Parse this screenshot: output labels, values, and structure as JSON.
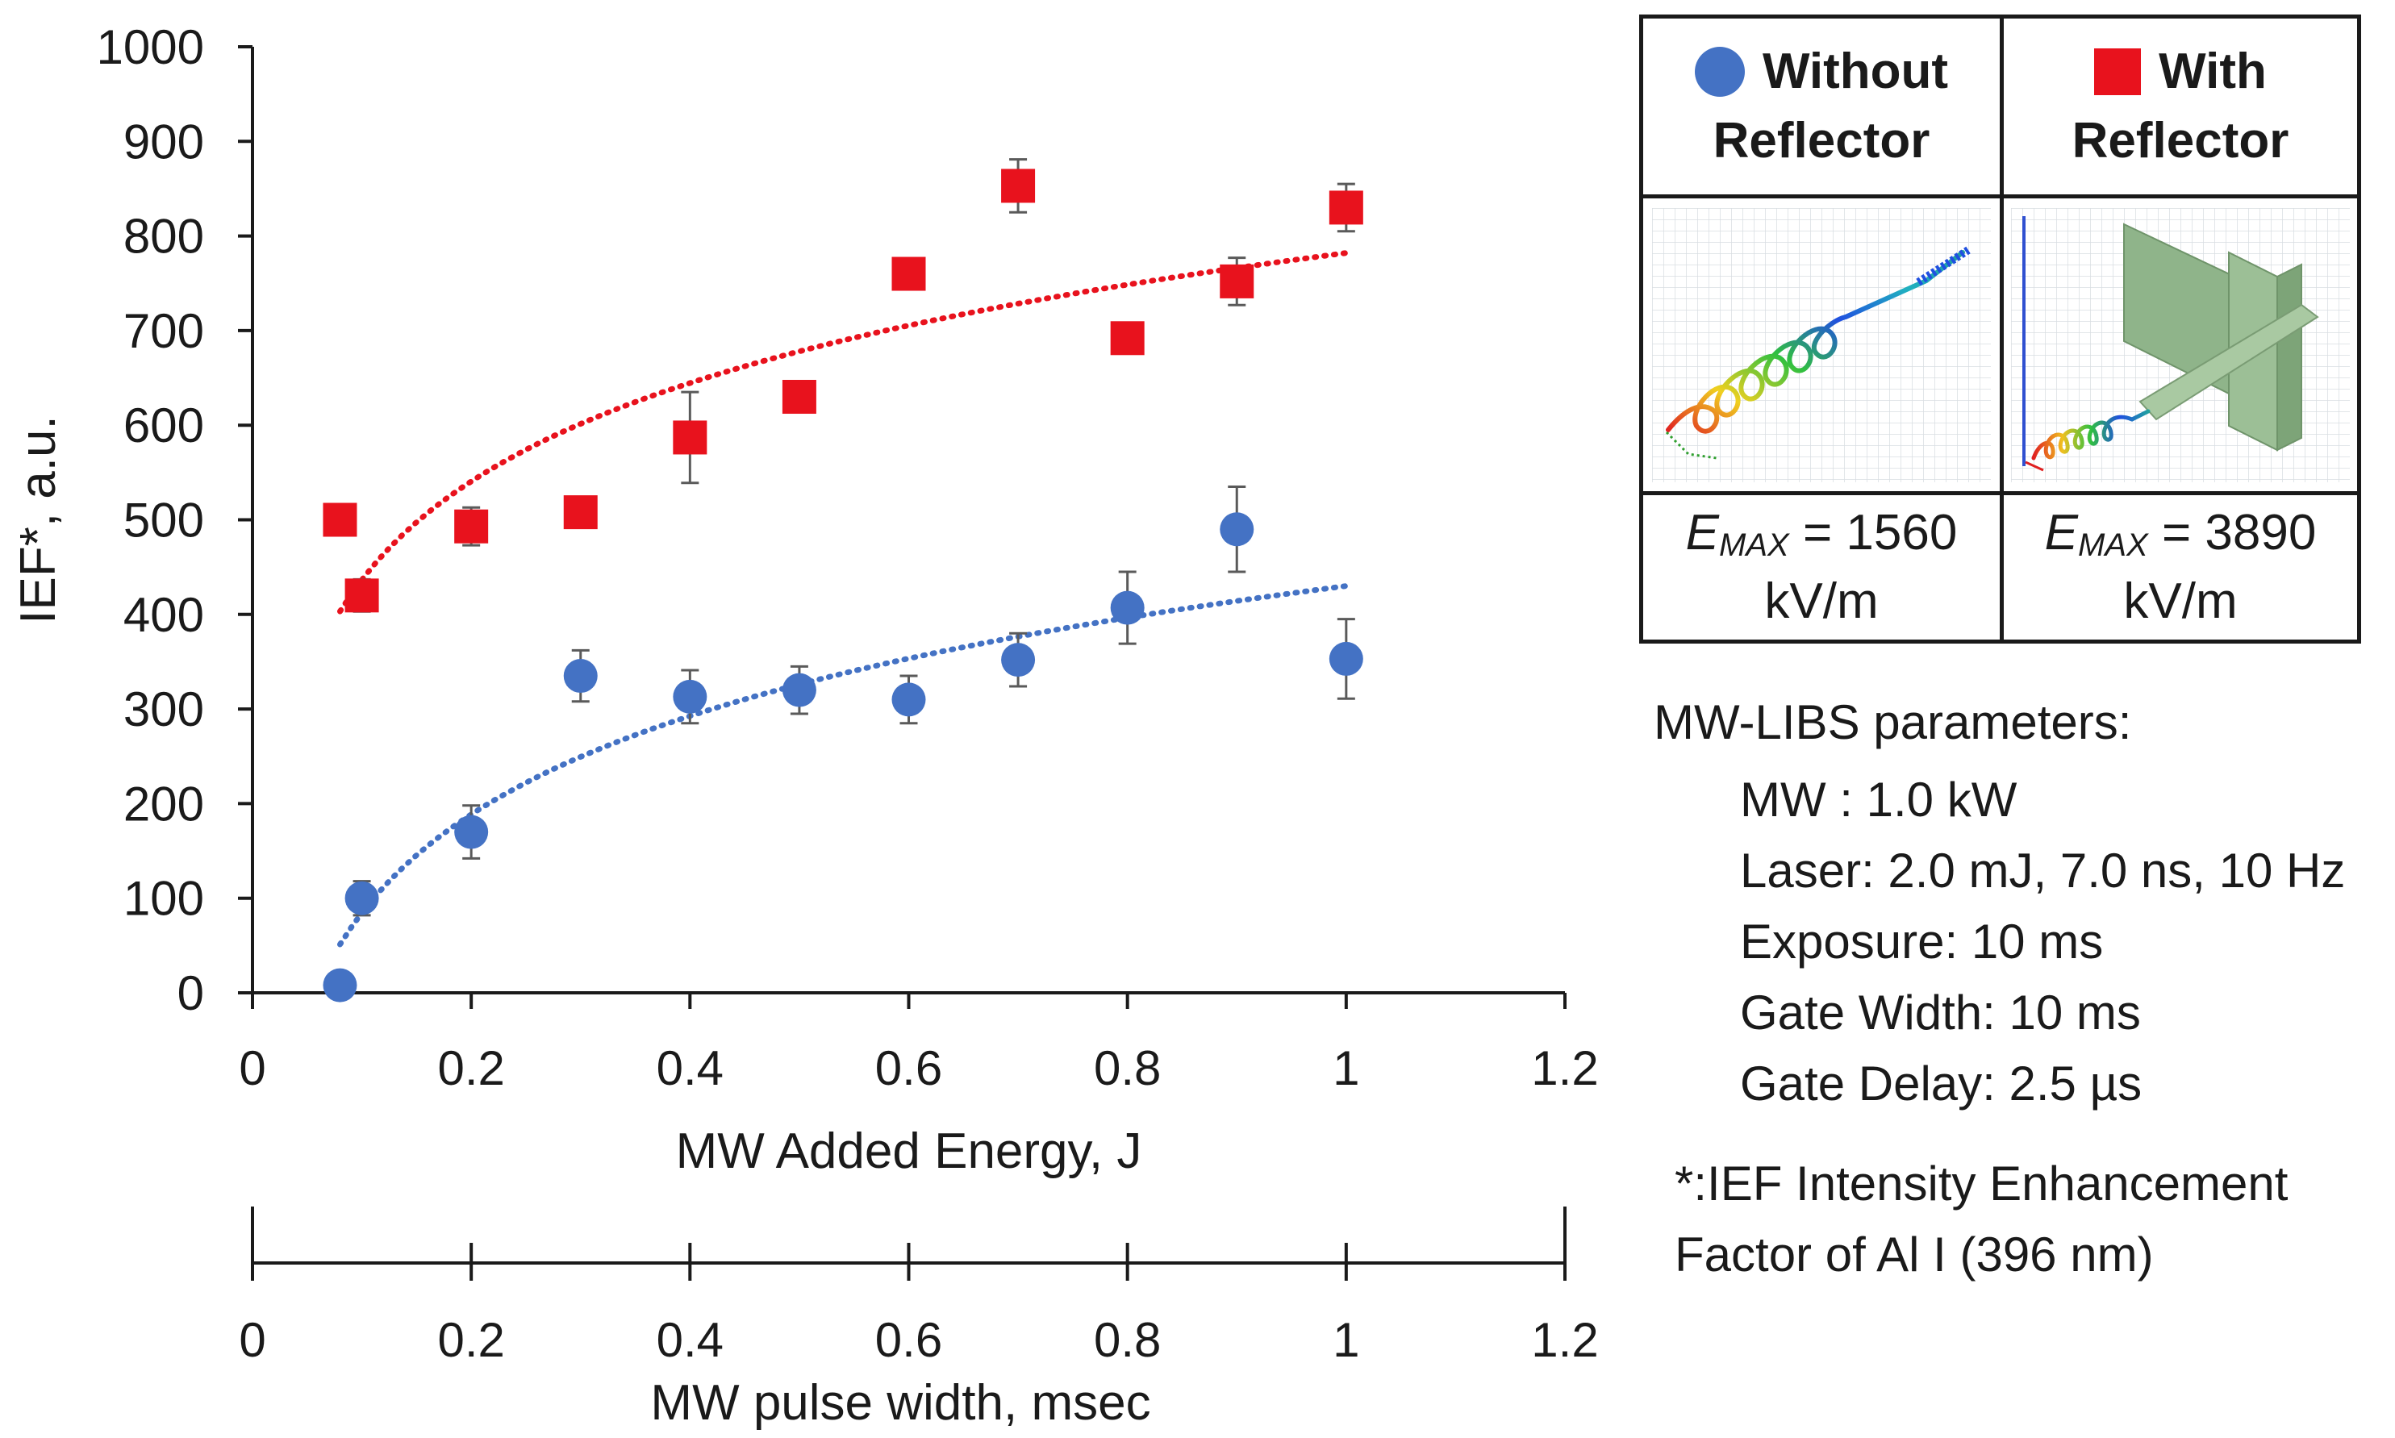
{
  "chart_data": {
    "type": "scatter",
    "ylabel": "IEF*, a.u.",
    "xlabel": "MW Added Energy, J",
    "x2label": "MW pulse width, msec",
    "xlim": [
      0,
      1.2
    ],
    "ylim": [
      0,
      1000
    ],
    "xticks": [
      "0",
      "0.2",
      "0.4",
      "0.6",
      "0.8",
      "1",
      "1.2"
    ],
    "x2ticks": [
      "0",
      "0.2",
      "0.4",
      "0.6",
      "0.8",
      "1",
      "1.2"
    ],
    "yticks": [
      "0",
      "100",
      "200",
      "300",
      "400",
      "500",
      "600",
      "700",
      "800",
      "900",
      "1000"
    ],
    "series": [
      {
        "name": "Without Reflector",
        "color": "#4472c4",
        "marker": "circle",
        "x": [
          0.08,
          0.1,
          0.2,
          0.3,
          0.4,
          0.5,
          0.6,
          0.7,
          0.8,
          0.9,
          1.0
        ],
        "y": [
          8,
          100,
          170,
          335,
          313,
          320,
          310,
          352,
          407,
          490,
          353
        ],
        "err": [
          0,
          18,
          28,
          27,
          28,
          25,
          25,
          28,
          38,
          45,
          42
        ],
        "trendline": {
          "type": "logarithmic",
          "a": 430,
          "b": 150,
          "x_start": 0.08,
          "x_end": 1.0
        }
      },
      {
        "name": "With Reflector",
        "color": "#e8121d",
        "marker": "square",
        "x": [
          0.08,
          0.1,
          0.2,
          0.3,
          0.4,
          0.5,
          0.6,
          0.7,
          0.8,
          0.9,
          1.0
        ],
        "y": [
          500,
          420,
          493,
          508,
          587,
          630,
          760,
          853,
          692,
          752,
          830
        ],
        "err": [
          0,
          17,
          20,
          15,
          48,
          0,
          0,
          28,
          15,
          25,
          25
        ],
        "trendline": {
          "type": "logarithmic",
          "a": 782,
          "b": 150,
          "x_start": 0.08,
          "x_end": 1.0
        }
      }
    ]
  },
  "legend": {
    "without_line1": "Without",
    "without_line2": "Reflector",
    "with_line1": "With",
    "with_line2": "Reflector",
    "emax_var": "E",
    "emax_sub": "MAX",
    "emax_without": " = 1560",
    "emax_with": " = 3890",
    "emax_unit": "kV/m"
  },
  "parameters": {
    "title": "MW-LIBS parameters:",
    "items": [
      "MW : 1.0 kW",
      "Laser: 2.0 mJ, 7.0 ns, 10 Hz",
      "Exposure: 10 ms",
      "Gate Width: 10 ms",
      "Gate Delay: 2.5 µs"
    ]
  },
  "footnote": {
    "line1": "*:IEF  Intensity Enhancement",
    "line2": "Factor of Al I (396 nm)"
  }
}
